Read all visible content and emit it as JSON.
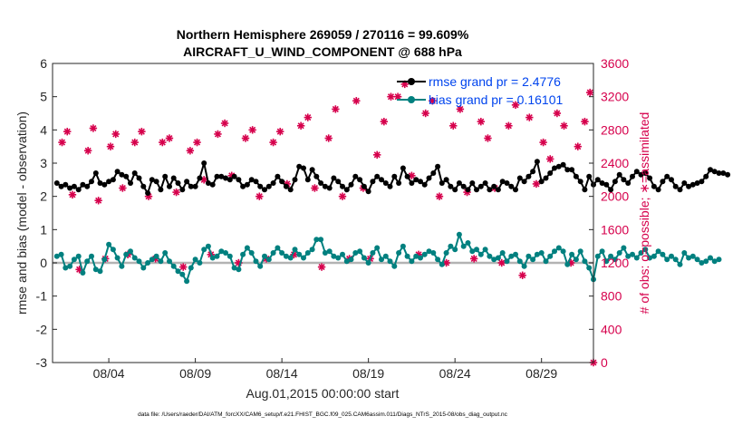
{
  "chart_data": {
    "type": "line",
    "title_line1": "Northern Hemisphere 269059 / 270116 = 99.609%",
    "title_line2": "AIRCRAFT_U_WIND_COMPONENT @ 688 hPa",
    "xlabel": "Aug.01,2015 00:00:00 start",
    "ylabel_left": "rmse and bias (model - observation)",
    "ylabel_right": "# of obs: o=possible; ∗=assimilated",
    "footer": "data file: /Users/raeder/DAI/ATM_forcXX/CAM6_setup/f.e21.FHIST_BGC.f09_025.CAM6assim.011/Diags_NTrS_2015-08/obs_diag_output.nc",
    "x_range_days": [
      0.25,
      31.5
    ],
    "x_ticks": [
      {
        "day": 3.5,
        "label": "08/04"
      },
      {
        "day": 8.5,
        "label": "08/09"
      },
      {
        "day": 13.5,
        "label": "08/14"
      },
      {
        "day": 18.5,
        "label": "08/19"
      },
      {
        "day": 23.5,
        "label": "08/24"
      },
      {
        "day": 28.5,
        "label": "08/29"
      }
    ],
    "y_left_range": [
      -3,
      6
    ],
    "y_left_ticks": [
      "-3",
      "-2",
      "-1",
      "0",
      "1",
      "2",
      "3",
      "4",
      "5",
      "6"
    ],
    "y_right_range": [
      0,
      3600
    ],
    "y_right_ticks": [
      "0",
      "400",
      "800",
      "1200",
      "1600",
      "2000",
      "2400",
      "2800",
      "3200",
      "3600"
    ],
    "legend": [
      {
        "label": "rmse grand pr = 2.4776",
        "color": "#000000"
      },
      {
        "label": "bias grand pr = 0.16101",
        "color": "#00807f"
      }
    ],
    "x_start_day": 0.5,
    "x_step_day": 0.25,
    "rmse": [
      2.4,
      2.3,
      2.35,
      2.25,
      2.3,
      2.2,
      2.35,
      2.3,
      2.45,
      2.7,
      2.4,
      2.35,
      2.45,
      2.5,
      2.75,
      2.65,
      2.6,
      2.4,
      2.7,
      2.55,
      2.3,
      2.1,
      2.5,
      2.45,
      2.2,
      2.6,
      2.3,
      2.55,
      2.4,
      2.2,
      2.45,
      2.3,
      2.3,
      2.55,
      3.0,
      2.4,
      2.35,
      2.6,
      2.6,
      2.55,
      2.5,
      2.6,
      2.5,
      2.3,
      2.35,
      2.5,
      2.45,
      2.3,
      2.2,
      2.3,
      2.4,
      2.6,
      2.45,
      2.3,
      2.2,
      2.5,
      2.9,
      2.85,
      2.5,
      2.8,
      2.6,
      2.4,
      2.3,
      2.25,
      2.55,
      2.45,
      2.3,
      2.2,
      2.35,
      2.6,
      2.5,
      2.3,
      2.15,
      2.45,
      2.6,
      2.5,
      2.4,
      2.3,
      2.6,
      2.4,
      2.85,
      2.6,
      2.4,
      2.5,
      2.45,
      2.35,
      2.55,
      2.7,
      2.9,
      2.4,
      2.5,
      2.3,
      2.2,
      2.4,
      2.3,
      2.2,
      2.4,
      2.2,
      2.3,
      2.4,
      2.2,
      2.3,
      2.2,
      2.45,
      2.4,
      2.3,
      2.2,
      2.55,
      2.45,
      2.6,
      2.75,
      3.05,
      2.45,
      2.55,
      2.7,
      2.85,
      2.9,
      2.95,
      2.8,
      2.8,
      2.6,
      2.45,
      2.2,
      2.6,
      2.35,
      2.5,
      2.4,
      2.35,
      2.2,
      2.45,
      2.65,
      2.5,
      2.4,
      2.6,
      2.75,
      2.65,
      2.7,
      2.55,
      2.3,
      2.2,
      2.45,
      2.6,
      2.5,
      2.3,
      2.2,
      2.4,
      2.3,
      2.35,
      2.4,
      2.45,
      2.6,
      2.8,
      2.75,
      2.7,
      2.7,
      2.65
    ],
    "bias": [
      0.2,
      0.25,
      -0.15,
      -0.1,
      0.1,
      0.2,
      -0.3,
      0.05,
      0.2,
      -0.2,
      -0.25,
      0.1,
      0.55,
      0.4,
      0.15,
      -0.1,
      0.25,
      0.35,
      0.15,
      0.05,
      -0.15,
      0.0,
      0.1,
      0.2,
      0.05,
      0.3,
      0.05,
      -0.1,
      -0.25,
      -0.35,
      -0.55,
      -0.15,
      0.1,
      0.0,
      0.4,
      0.5,
      0.15,
      0.2,
      0.35,
      0.3,
      0.2,
      -0.15,
      -0.2,
      0.25,
      0.45,
      0.3,
      0.05,
      -0.1,
      0.2,
      0.1,
      0.3,
      0.45,
      0.3,
      0.2,
      0.15,
      0.4,
      0.25,
      0.15,
      0.3,
      0.4,
      0.7,
      0.7,
      0.3,
      0.35,
      0.2,
      0.15,
      0.25,
      0.05,
      0.1,
      0.3,
      0.35,
      0.15,
      0.0,
      0.3,
      0.45,
      0.1,
      0.2,
      0.05,
      -0.1,
      0.3,
      0.5,
      0.2,
      0.05,
      0.2,
      0.15,
      0.25,
      0.35,
      0.3,
      0.1,
      -0.05,
      0.3,
      0.5,
      0.4,
      0.85,
      0.5,
      0.6,
      0.35,
      0.4,
      0.25,
      0.4,
      0.2,
      0.1,
      0.15,
      0.3,
      0.05,
      0.2,
      0.25,
      0.05,
      -0.1,
      0.2,
      0.1,
      0.25,
      0.3,
      0.05,
      0.2,
      0.35,
      0.45,
      0.35,
      -0.05,
      0.25,
      0.1,
      0.35,
      0.05,
      -0.15,
      -0.5,
      0.2,
      0.35,
      0.05,
      0.2,
      0.1,
      0.3,
      0.45,
      0.2,
      0.25,
      0.15,
      0.3,
      0.4,
      0.15,
      0.2,
      0.35,
      0.25,
      0.1,
      0.2,
      0.1,
      -0.05,
      0.3,
      0.15,
      0.2,
      0.1,
      0.0,
      0.05,
      0.15,
      0.05,
      0.1
    ],
    "obs_points": [
      {
        "day": 0.8,
        "n": 2650
      },
      {
        "day": 1.1,
        "n": 2780
      },
      {
        "day": 1.4,
        "n": 2020
      },
      {
        "day": 1.8,
        "n": 1120
      },
      {
        "day": 2.3,
        "n": 2550
      },
      {
        "day": 2.6,
        "n": 2820
      },
      {
        "day": 2.9,
        "n": 1950
      },
      {
        "day": 3.3,
        "n": 1250
      },
      {
        "day": 3.6,
        "n": 2600
      },
      {
        "day": 3.9,
        "n": 2750
      },
      {
        "day": 4.3,
        "n": 2100
      },
      {
        "day": 4.6,
        "n": 1300
      },
      {
        "day": 5.0,
        "n": 2650
      },
      {
        "day": 5.4,
        "n": 2780
      },
      {
        "day": 5.8,
        "n": 2000
      },
      {
        "day": 6.2,
        "n": 1250
      },
      {
        "day": 6.6,
        "n": 2650
      },
      {
        "day": 7.0,
        "n": 2700
      },
      {
        "day": 7.4,
        "n": 2050
      },
      {
        "day": 7.8,
        "n": 1150
      },
      {
        "day": 8.2,
        "n": 2550
      },
      {
        "day": 8.6,
        "n": 2650
      },
      {
        "day": 9.0,
        "n": 2200
      },
      {
        "day": 9.4,
        "n": 1300
      },
      {
        "day": 9.8,
        "n": 2750
      },
      {
        "day": 10.2,
        "n": 2880
      },
      {
        "day": 10.6,
        "n": 2250
      },
      {
        "day": 11.0,
        "n": 1200
      },
      {
        "day": 11.4,
        "n": 2700
      },
      {
        "day": 11.8,
        "n": 2800
      },
      {
        "day": 12.2,
        "n": 2000
      },
      {
        "day": 12.6,
        "n": 1250
      },
      {
        "day": 13.0,
        "n": 2650
      },
      {
        "day": 13.4,
        "n": 2780
      },
      {
        "day": 13.8,
        "n": 2150
      },
      {
        "day": 14.2,
        "n": 1300
      },
      {
        "day": 14.6,
        "n": 2850
      },
      {
        "day": 15.0,
        "n": 2950
      },
      {
        "day": 15.4,
        "n": 2100
      },
      {
        "day": 15.8,
        "n": 1150
      },
      {
        "day": 16.2,
        "n": 2700
      },
      {
        "day": 16.6,
        "n": 3050
      },
      {
        "day": 17.0,
        "n": 2000
      },
      {
        "day": 17.4,
        "n": 1250
      },
      {
        "day": 17.8,
        "n": 3150
      },
      {
        "day": 18.2,
        "n": 2100
      },
      {
        "day": 18.6,
        "n": 1250
      },
      {
        "day": 19.0,
        "n": 2500
      },
      {
        "day": 19.4,
        "n": 2900
      },
      {
        "day": 19.8,
        "n": 3200
      },
      {
        "day": 20.2,
        "n": 3200
      },
      {
        "day": 20.6,
        "n": 3350
      },
      {
        "day": 21.0,
        "n": 2250
      },
      {
        "day": 21.4,
        "n": 1300
      },
      {
        "day": 21.8,
        "n": 3000
      },
      {
        "day": 22.2,
        "n": 3150
      },
      {
        "day": 22.6,
        "n": 2000
      },
      {
        "day": 23.0,
        "n": 1200
      },
      {
        "day": 23.4,
        "n": 2850
      },
      {
        "day": 23.8,
        "n": 3050
      },
      {
        "day": 24.2,
        "n": 2050
      },
      {
        "day": 24.6,
        "n": 1250
      },
      {
        "day": 25.0,
        "n": 2900
      },
      {
        "day": 25.4,
        "n": 2700
      },
      {
        "day": 25.8,
        "n": 2100
      },
      {
        "day": 26.2,
        "n": 1200
      },
      {
        "day": 26.6,
        "n": 2850
      },
      {
        "day": 27.0,
        "n": 3100
      },
      {
        "day": 27.4,
        "n": 1050
      },
      {
        "day": 27.8,
        "n": 2950
      },
      {
        "day": 28.2,
        "n": 2150
      },
      {
        "day": 28.6,
        "n": 2650
      },
      {
        "day": 29.0,
        "n": 2450
      },
      {
        "day": 29.4,
        "n": 3000
      },
      {
        "day": 29.8,
        "n": 2850
      },
      {
        "day": 30.2,
        "n": 1200
      },
      {
        "day": 30.6,
        "n": 2600
      },
      {
        "day": 31.0,
        "n": 2900
      },
      {
        "day": 31.3,
        "n": 3250
      },
      {
        "day": 31.5,
        "n": 0
      }
    ],
    "colors": {
      "rmse": "#000000",
      "bias": "#00807f",
      "obs": "#d6004c",
      "zero_line": "#b3b3b3",
      "legend_text": "#0044ee"
    }
  }
}
